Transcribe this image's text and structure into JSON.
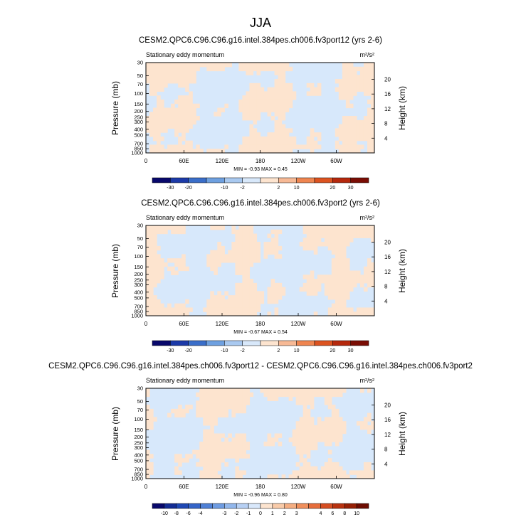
{
  "figure": {
    "title": "JJA"
  },
  "colors": {
    "positive_fill": "#fde4cf",
    "negative_fill": "#d7e8fb",
    "zero_line": "#9a9a9a"
  },
  "chart_data": [
    {
      "type": "heatmap",
      "panel": "top",
      "title": "CESM2.QPC6.C96.C96.g16.intel.384pes.ch006.fv3port12 (yrs 2-6)",
      "field_label": "Stationary eddy momentum",
      "units": "m²/s²",
      "ylabel": "Pressure (mb)",
      "ylabel_right": "Height (km)",
      "x_ticks": [
        "0",
        "60E",
        "120E",
        "180",
        "120W",
        "60W"
      ],
      "y_ticks": [
        "30",
        "50",
        "70",
        "100",
        "150",
        "200",
        "250",
        "300",
        "400",
        "500",
        "700",
        "850",
        "1000"
      ],
      "height_ticks": [
        "20",
        "16",
        "12",
        "8",
        "4"
      ],
      "stats": "MIN = -0.93  MAX =  0.45",
      "min": -0.93,
      "max": 0.45,
      "colorbar_ticks": [
        "-30",
        "-20",
        "-10",
        "-2",
        "2",
        "10",
        "20",
        "30"
      ]
    },
    {
      "type": "heatmap",
      "panel": "middle",
      "title": "CESM2.QPC6.C96.C96.g16.intel.384pes.ch006.fv3port2 (yrs 2-6)",
      "field_label": "Stationary eddy momentum",
      "units": "m²/s²",
      "ylabel": "Pressure (mb)",
      "ylabel_right": "Height (km)",
      "x_ticks": [
        "0",
        "60E",
        "120E",
        "180",
        "120W",
        "60W"
      ],
      "y_ticks": [
        "30",
        "50",
        "70",
        "100",
        "150",
        "200",
        "250",
        "300",
        "400",
        "500",
        "700",
        "850",
        "1000"
      ],
      "height_ticks": [
        "20",
        "16",
        "12",
        "8",
        "4"
      ],
      "stats": "MIN = -0.67  MAX =  0.54",
      "min": -0.67,
      "max": 0.54,
      "colorbar_ticks": [
        "-30",
        "-20",
        "-10",
        "-2",
        "2",
        "10",
        "20",
        "30"
      ]
    },
    {
      "type": "heatmap",
      "panel": "bottom",
      "title": "CESM2.QPC6.C96.C96.g16.intel.384pes.ch006.fv3port12 - CESM2.QPC6.C96.C96.g16.intel.384pes.ch006.fv3port2",
      "field_label": "Stationary eddy momentum",
      "units": "m²/s²",
      "ylabel": "Pressure (mb)",
      "ylabel_right": "Height (km)",
      "x_ticks": [
        "0",
        "60E",
        "120E",
        "180",
        "120W",
        "60W"
      ],
      "y_ticks": [
        "30",
        "50",
        "70",
        "100",
        "150",
        "200",
        "250",
        "300",
        "400",
        "500",
        "700",
        "850",
        "1000"
      ],
      "height_ticks": [
        "20",
        "16",
        "12",
        "8",
        "4"
      ],
      "stats": "MIN = -0.96  MAX =  0.80",
      "min": -0.96,
      "max": 0.8,
      "colorbar_ticks": [
        "-10",
        "-8",
        "-6",
        "-4",
        "-3",
        "-2",
        "-1",
        "0",
        "1",
        "2",
        "3",
        "4",
        "6",
        "8",
        "10"
      ]
    }
  ],
  "colorbars": {
    "abs": {
      "levels": [
        "-30",
        "-20",
        "-10",
        "-2",
        "2",
        "10",
        "20",
        "30"
      ],
      "colors": [
        "#08086b",
        "#1c3aa8",
        "#3a6ec9",
        "#6ea0e0",
        "#a9c9f0",
        "#d8e8fa",
        "#fde4cf",
        "#f7b995",
        "#ef8550",
        "#dc5320",
        "#b5280c",
        "#7a0d04"
      ]
    },
    "diff": {
      "levels": [
        "-10",
        "-8",
        "-6",
        "-4",
        "-3",
        "-2",
        "-1",
        "0",
        "1",
        "2",
        "3",
        "4",
        "6",
        "8",
        "10"
      ],
      "colors": [
        "#08086b",
        "#132c94",
        "#1f48b4",
        "#3464c8",
        "#4f80d6",
        "#6e9ce2",
        "#92b7ec",
        "#b7d0f4",
        "#d9e8fb",
        "#fde4cf",
        "#f9cba9",
        "#f5ae82",
        "#f08f5c",
        "#e66d3b",
        "#d54e22",
        "#b8320f",
        "#962005",
        "#6e0d02"
      ]
    }
  }
}
